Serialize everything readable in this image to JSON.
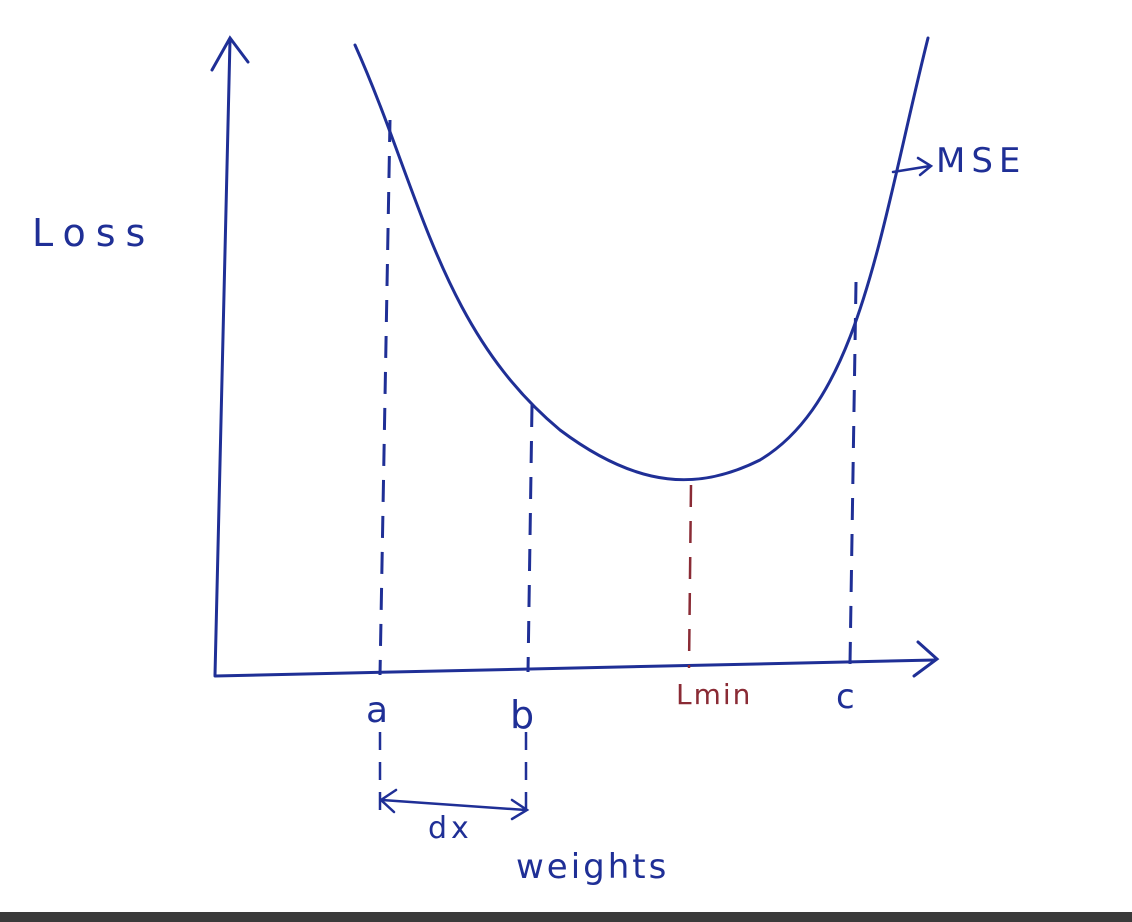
{
  "diagram": {
    "y_axis_label": "Loss",
    "x_axis_label": "weights",
    "curve_label": "MSE",
    "points": {
      "a": "a",
      "b": "b",
      "min": "Lmin",
      "c": "c"
    },
    "interval_label": "dx"
  },
  "colors": {
    "ink": "#1f2f96",
    "min_line": "#8a2b35",
    "bottom_bar": "#3a3a3a"
  }
}
